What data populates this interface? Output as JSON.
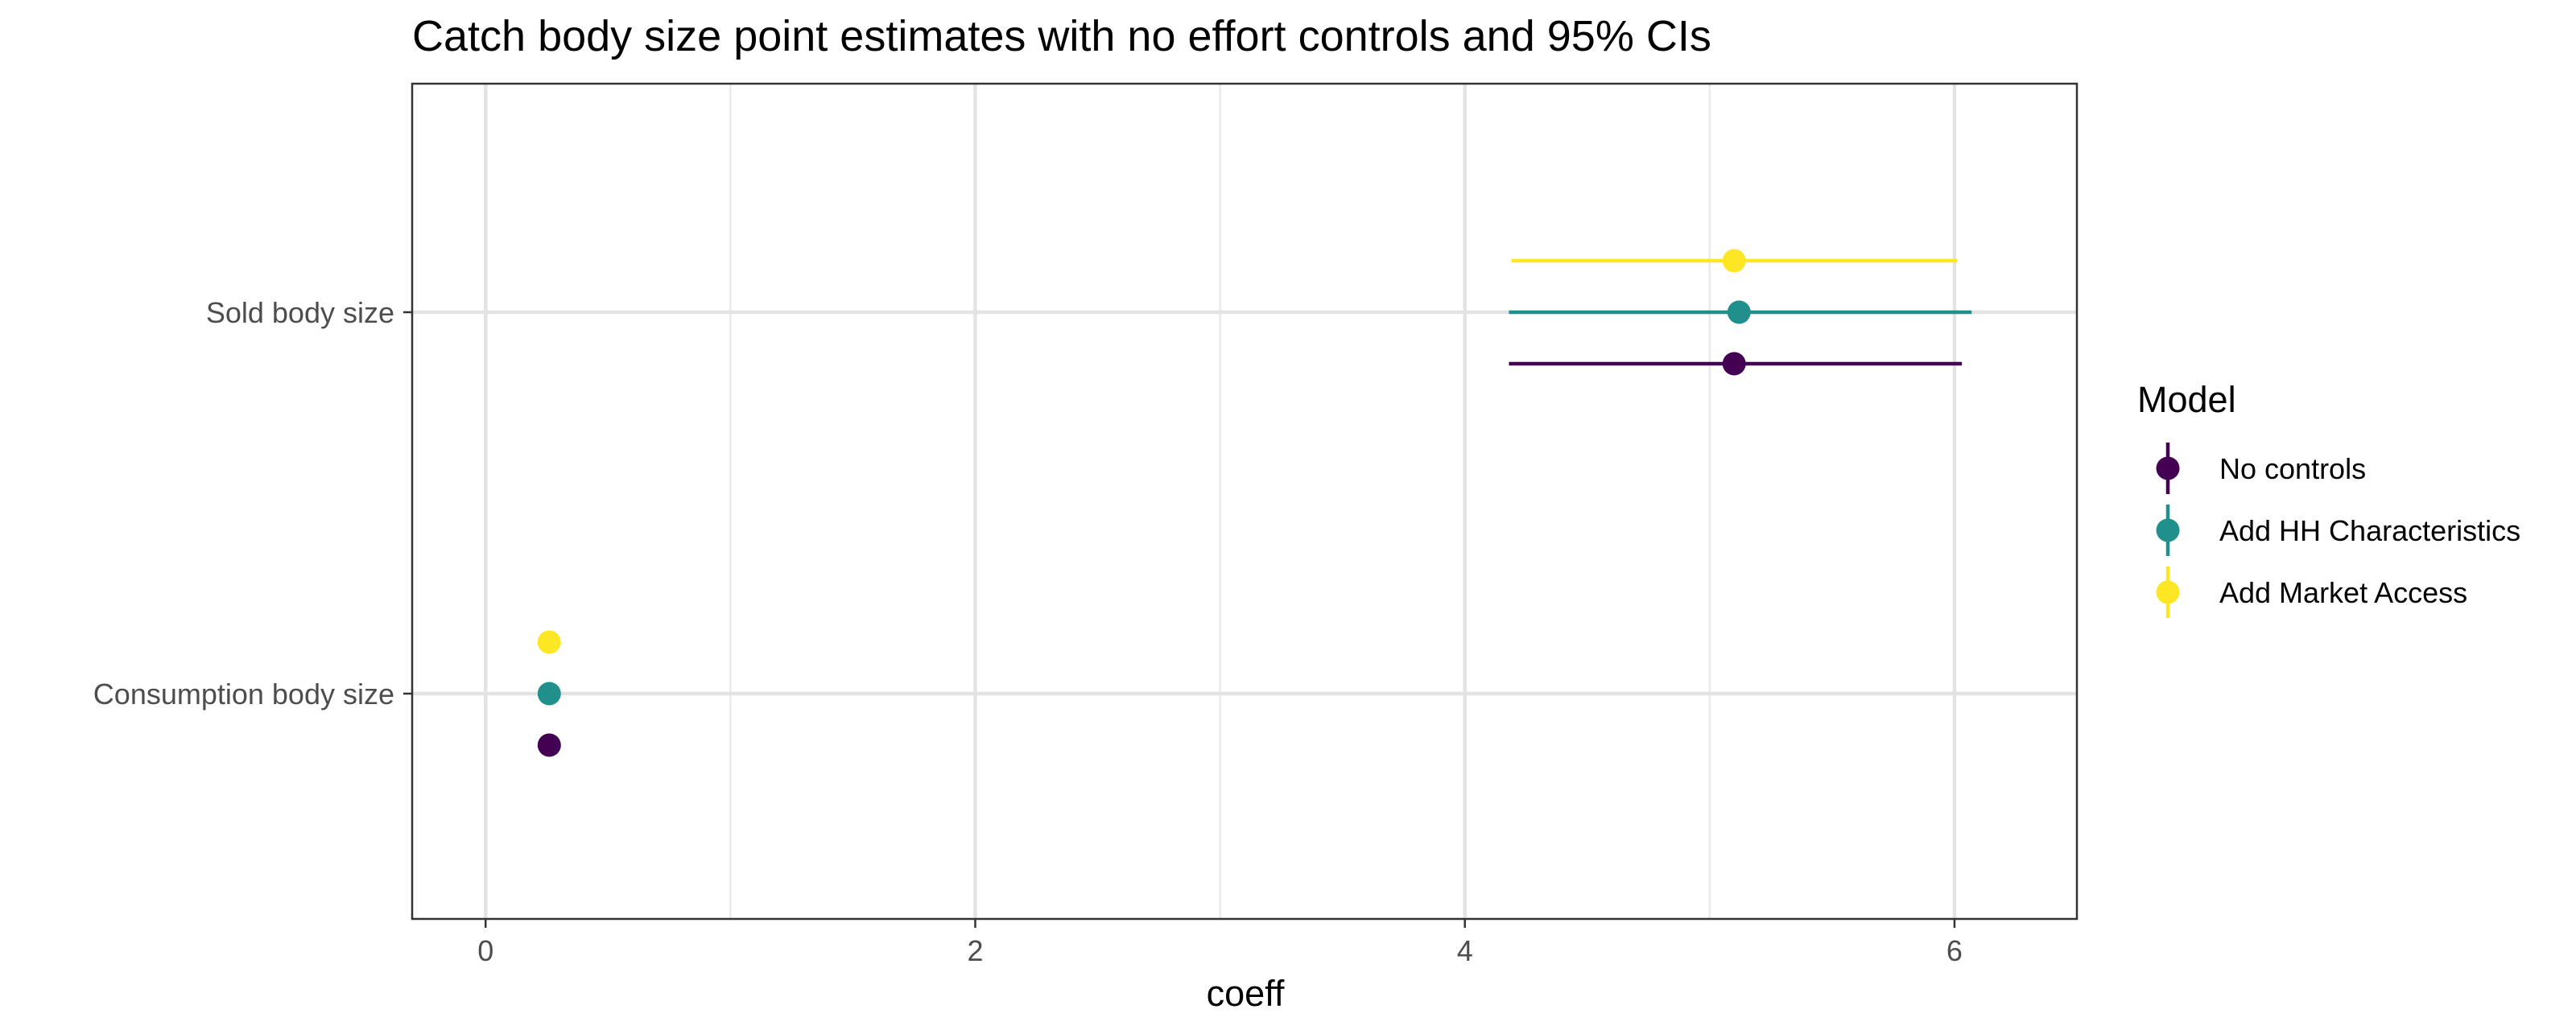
{
  "chart_data": {
    "type": "scatter",
    "title": "Catch body size point estimates with no effort controls and 95% CIs",
    "xlabel": "coeff",
    "ylabel": "",
    "xlim": [
      -0.3,
      6.5
    ],
    "xticks": [
      0,
      2,
      4,
      6
    ],
    "x_minor_gridlines": [
      1,
      3,
      5
    ],
    "categories": [
      "Consumption body size",
      "Sold body size"
    ],
    "grid": true,
    "legend": {
      "title": "Model",
      "position": "right"
    },
    "series": [
      {
        "name": "No controls",
        "color": "#440154",
        "points": [
          {
            "category": "Sold body size",
            "x": 5.1,
            "ci": [
              4.18,
              6.03
            ]
          },
          {
            "category": "Consumption body size",
            "x": 0.26,
            "ci": [
              0.25,
              0.27
            ]
          }
        ]
      },
      {
        "name": "Add HH Characteristics",
        "color": "#21908C",
        "points": [
          {
            "category": "Sold body size",
            "x": 5.12,
            "ci": [
              4.18,
              6.07
            ]
          },
          {
            "category": "Consumption body size",
            "x": 0.26,
            "ci": [
              0.25,
              0.27
            ]
          }
        ]
      },
      {
        "name": "Add Market Access",
        "color": "#FDE725",
        "points": [
          {
            "category": "Sold body size",
            "x": 5.1,
            "ci": [
              4.19,
              6.01
            ]
          },
          {
            "category": "Consumption body size",
            "x": 0.26,
            "ci": [
              0.25,
              0.27
            ]
          }
        ]
      }
    ]
  }
}
